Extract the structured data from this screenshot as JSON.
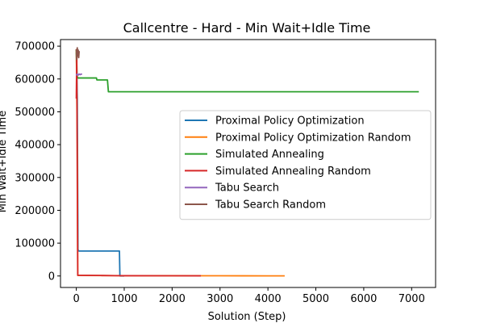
{
  "chart_data": {
    "type": "line",
    "title": "Callcentre - Hard - Min Wait+Idle Time",
    "xlabel": "Solution (Step)",
    "ylabel": "Min Wait+Idle Time",
    "xlim": [
      -330,
      7500
    ],
    "ylim": [
      -35000,
      720000
    ],
    "xticks": [
      0,
      1000,
      2000,
      3000,
      4000,
      5000,
      6000,
      7000
    ],
    "yticks": [
      0,
      100000,
      200000,
      300000,
      400000,
      500000,
      600000,
      700000
    ],
    "grid": false,
    "legend_position": "center-right",
    "series": [
      {
        "name": "Proximal Policy Optimization",
        "color": "#1f77b4",
        "x": [
          0,
          20,
          35,
          50,
          200,
          400,
          600,
          850,
          900,
          910,
          1000
        ],
        "y": [
          680000,
          540000,
          80000,
          76000,
          76000,
          76000,
          76000,
          76000,
          76000,
          0,
          0
        ]
      },
      {
        "name": "Proximal Policy Optimization Random",
        "color": "#ff7f0e",
        "x": [
          0,
          20,
          30,
          500,
          1000,
          2000,
          3000,
          3500,
          4000,
          4350
        ],
        "y": [
          690000,
          400000,
          1500,
          1200,
          1000,
          800,
          600,
          500,
          400,
          300
        ]
      },
      {
        "name": "Simulated Annealing",
        "color": "#2ca02c",
        "x": [
          0,
          15,
          30,
          420,
          430,
          650,
          670,
          2000,
          4000,
          6000,
          7150
        ],
        "y": [
          690000,
          610000,
          603000,
          603000,
          597000,
          597000,
          561000,
          561000,
          561000,
          561000,
          561000
        ]
      },
      {
        "name": "Simulated Annealing Random",
        "color": "#d62728",
        "x": [
          0,
          10,
          20,
          30,
          500,
          800,
          1000,
          2000,
          2600
        ],
        "y": [
          540000,
          690000,
          300000,
          2000,
          1500,
          1000,
          800,
          600,
          500
        ]
      },
      {
        "name": "Tabu Search",
        "color": "#9467bd",
        "x": [
          0,
          10,
          20,
          40,
          60,
          80,
          100,
          120
        ],
        "y": [
          615000,
          612000,
          615000,
          612000,
          615000,
          613000,
          615000,
          614000
        ]
      },
      {
        "name": "Tabu Search Random",
        "color": "#8c564b",
        "x": [
          0,
          10,
          20,
          30,
          40,
          50,
          60
        ],
        "y": [
          690000,
          660000,
          695000,
          670000,
          688000,
          665000,
          685000
        ]
      }
    ]
  }
}
